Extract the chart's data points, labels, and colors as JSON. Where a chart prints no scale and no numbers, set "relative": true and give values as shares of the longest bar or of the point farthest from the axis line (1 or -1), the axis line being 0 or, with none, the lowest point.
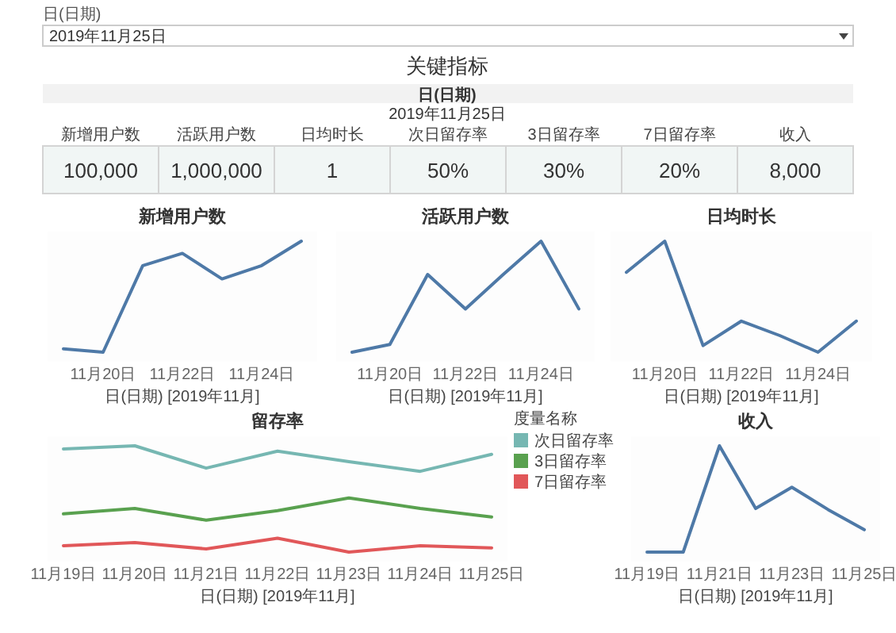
{
  "chart_data": [
    {
      "type": "other",
      "title": "关键指标",
      "subtitle": "日(日期)",
      "annotations": [
        "日(日期)",
        "2019年11月25日",
        "2019年11月25日",
        "新增用户数",
        "100,000",
        "活跃用户数",
        "1,000,000",
        "日均时长",
        "1",
        "次日留存率",
        "50%",
        "3日留存率",
        "30%",
        "7日留存率",
        "20%",
        "收入",
        "8,000"
      ]
    },
    {
      "type": "line",
      "title": "新增用户数",
      "xlabel": "日(日期) [2019年11月]",
      "relative": true,
      "categories": [
        null,
        "11月20日",
        null,
        "11月22日",
        null,
        "11月24日",
        null
      ],
      "series": [
        {
          "color": "#4e79a7",
          "values": [
            0.03,
            0,
            0.78,
            0.89,
            0.66,
            0.78,
            1
          ]
        }
      ]
    },
    {
      "type": "line",
      "title": "活跃用户数",
      "xlabel": "日(日期) [2019年11月]",
      "relative": true,
      "categories": [
        null,
        "11月20日",
        null,
        "11月22日",
        null,
        "11月24日",
        null
      ],
      "series": [
        {
          "color": "#4e79a7",
          "values": [
            0,
            0.07,
            0.7,
            0.39,
            0.7,
            1,
            0.39
          ]
        }
      ]
    },
    {
      "type": "line",
      "title": "日均时长",
      "xlabel": "日(日期) [2019年11月]",
      "relative": true,
      "categories": [
        null,
        "11月20日",
        null,
        "11月22日",
        null,
        "11月24日",
        null
      ],
      "series": [
        {
          "color": "#4e79a7",
          "values": [
            0.72,
            1,
            0.06,
            0.28,
            0.15,
            0,
            0.28
          ]
        }
      ]
    },
    {
      "type": "line",
      "title": "留存率",
      "xlabel": "日(日期) [2019年11月]",
      "relative": true,
      "legend": "right",
      "legend_title": "度量名称",
      "categories": [
        "11月19日",
        "11月20日",
        "11月21日",
        "11月22日",
        "11月23日",
        "11月24日",
        "11月25日"
      ],
      "series": [
        {
          "name": "次日留存率",
          "color": "#76b7b2",
          "values": [
            0.97,
            1,
            0.79,
            0.95,
            0.85,
            0.76,
            0.92
          ]
        },
        {
          "name": "3日留存率",
          "color": "#59a14f",
          "values": [
            0.36,
            0.41,
            0.3,
            0.39,
            0.51,
            0.41,
            0.33
          ]
        },
        {
          "name": "7日留存率",
          "color": "#e15759",
          "values": [
            0.06,
            0.09,
            0.03,
            0.13,
            0,
            0.06,
            0.04
          ]
        }
      ]
    },
    {
      "type": "line",
      "title": "收入",
      "xlabel": "日(日期) [2019年11月]",
      "relative": true,
      "categories": [
        "11月19日",
        null,
        "11月21日",
        null,
        "11月23日",
        null,
        "11月25日"
      ],
      "series": [
        {
          "color": "#4e79a7",
          "values": [
            0,
            0,
            1,
            0.41,
            0.61,
            0.4,
            0.21
          ]
        }
      ]
    }
  ]
}
